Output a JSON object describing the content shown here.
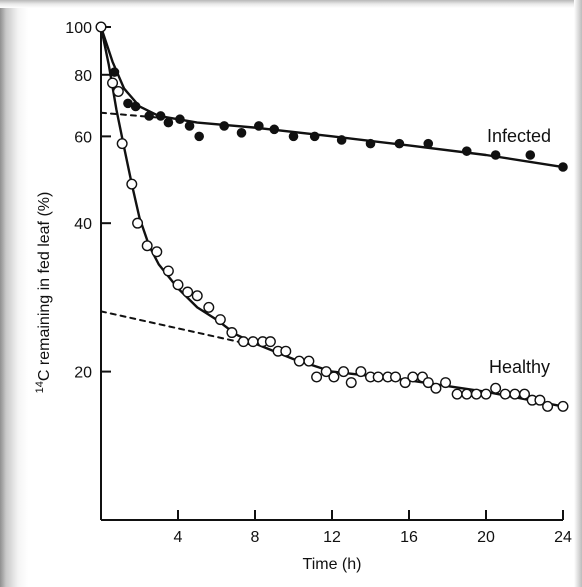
{
  "chart_data": {
    "type": "scatter",
    "title": "",
    "xlabel": "Time (h)",
    "ylabel": "¹⁴C remaining in fed leaf (%)",
    "ylabel_parts": [
      "14",
      "C remaining in fed leaf (%)"
    ],
    "y_scale": "log",
    "xlim": [
      0,
      24
    ],
    "ylim": [
      10,
      100
    ],
    "x_ticks": [
      4,
      8,
      12,
      16,
      20,
      24
    ],
    "x_tick_labels": [
      "4",
      "8",
      "12",
      "16",
      "20",
      "24"
    ],
    "y_ticks": [
      20,
      40,
      60,
      80,
      100
    ],
    "y_tick_labels": [
      "20",
      "40",
      "60",
      "80",
      "100"
    ],
    "grid": false,
    "legend": "none",
    "series": [
      {
        "name": "Infected",
        "marker": "filled-circle",
        "color": "#111111",
        "points": [
          [
            0.7,
            81
          ],
          [
            0.9,
            74
          ],
          [
            1.4,
            70
          ],
          [
            1.8,
            69
          ],
          [
            2.5,
            66
          ],
          [
            3.1,
            66
          ],
          [
            3.5,
            64
          ],
          [
            4.1,
            65
          ],
          [
            4.6,
            63
          ],
          [
            5.1,
            60
          ],
          [
            6.4,
            63
          ],
          [
            7.3,
            61
          ],
          [
            8.2,
            63
          ],
          [
            9.0,
            62
          ],
          [
            10.0,
            60
          ],
          [
            11.1,
            60
          ],
          [
            12.5,
            59
          ],
          [
            14.0,
            58
          ],
          [
            15.5,
            58
          ],
          [
            17.0,
            58
          ],
          [
            19.0,
            56
          ],
          [
            20.5,
            55
          ],
          [
            22.3,
            55
          ],
          [
            24.0,
            52
          ]
        ],
        "fit_line": [
          [
            0,
            100
          ],
          [
            0.6,
            85
          ],
          [
            1.2,
            75
          ],
          [
            2.0,
            69
          ],
          [
            3.0,
            66
          ],
          [
            5.0,
            64
          ],
          [
            8.0,
            62.5
          ],
          [
            12.0,
            60
          ],
          [
            16.0,
            57.5
          ],
          [
            20.0,
            55
          ],
          [
            24.0,
            52
          ]
        ],
        "extrapolation": [
          [
            0,
            67
          ],
          [
            3.0,
            65.5
          ]
        ]
      },
      {
        "name": "Healthy",
        "marker": "open-circle",
        "color": "#111111",
        "points": [
          [
            0,
            100
          ],
          [
            0.6,
            77
          ],
          [
            0.9,
            74
          ],
          [
            1.1,
            58
          ],
          [
            1.6,
            48
          ],
          [
            1.9,
            40
          ],
          [
            2.4,
            36
          ],
          [
            2.9,
            35
          ],
          [
            3.5,
            32
          ],
          [
            4.0,
            30
          ],
          [
            4.5,
            29
          ],
          [
            5.0,
            28.5
          ],
          [
            5.6,
            27
          ],
          [
            6.2,
            25.5
          ],
          [
            6.8,
            24
          ],
          [
            7.4,
            23
          ],
          [
            7.9,
            23
          ],
          [
            8.4,
            23
          ],
          [
            8.8,
            23
          ],
          [
            9.2,
            22
          ],
          [
            9.6,
            22
          ],
          [
            10.3,
            21
          ],
          [
            10.8,
            21
          ],
          [
            11.2,
            19.5
          ],
          [
            11.7,
            20
          ],
          [
            12.1,
            19.5
          ],
          [
            12.6,
            20
          ],
          [
            13.0,
            19
          ],
          [
            13.5,
            20
          ],
          [
            14.0,
            19.5
          ],
          [
            14.4,
            19.5
          ],
          [
            14.9,
            19.5
          ],
          [
            15.3,
            19.5
          ],
          [
            15.8,
            19
          ],
          [
            16.2,
            19.5
          ],
          [
            16.7,
            19.5
          ],
          [
            17.0,
            19
          ],
          [
            17.4,
            18.5
          ],
          [
            17.9,
            19
          ],
          [
            18.5,
            18
          ],
          [
            19.0,
            18
          ],
          [
            19.5,
            18
          ],
          [
            20.0,
            18
          ],
          [
            20.5,
            18.5
          ],
          [
            21.0,
            18
          ],
          [
            21.5,
            18
          ],
          [
            22.0,
            18
          ],
          [
            22.4,
            17.5
          ],
          [
            22.8,
            17.5
          ],
          [
            23.2,
            17
          ],
          [
            24.0,
            17
          ]
        ],
        "fit_line": [
          [
            0,
            100
          ],
          [
            0.4,
            84
          ],
          [
            0.8,
            68
          ],
          [
            1.2,
            57
          ],
          [
            1.6,
            48
          ],
          [
            2.0,
            41
          ],
          [
            2.5,
            36
          ],
          [
            3.0,
            33
          ],
          [
            4.0,
            29.5
          ],
          [
            5.0,
            27
          ],
          [
            6.0,
            25.5
          ],
          [
            7.0,
            23.8
          ],
          [
            8.0,
            22.8
          ],
          [
            10.0,
            21.2
          ],
          [
            12.0,
            20
          ],
          [
            16.0,
            19.2
          ],
          [
            20.0,
            18.2
          ],
          [
            24.0,
            17
          ]
        ],
        "extrapolation": [
          [
            0,
            26.5
          ],
          [
            8.0,
            22.6
          ]
        ]
      }
    ],
    "annotations": [
      "Infected",
      "Healthy"
    ]
  }
}
